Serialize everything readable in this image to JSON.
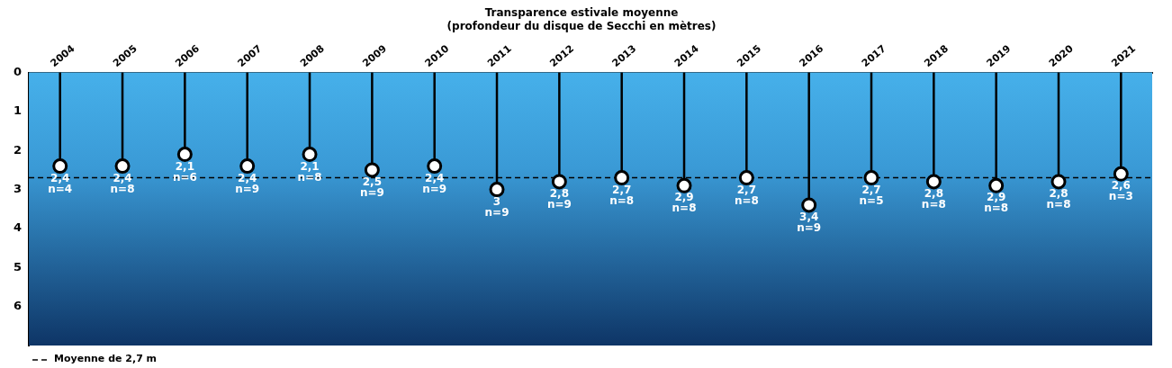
{
  "chart_data": {
    "type": "lollipop",
    "title": "Transparence estivale moyenne",
    "subtitle": "(profondeur du disque de Secchi en mètres)",
    "categories": [
      "2004",
      "2005",
      "2006",
      "2007",
      "2008",
      "2009",
      "2010",
      "2011",
      "2012",
      "2013",
      "2014",
      "2015",
      "2016",
      "2017",
      "2018",
      "2019",
      "2020",
      "2021"
    ],
    "series": [
      {
        "color": "#000000",
        "values": [
          2.4,
          2.4,
          2.1,
          2.4,
          2.1,
          2.5,
          2.4,
          3,
          2.8,
          2.7,
          2.9,
          2.7,
          3.4,
          2.7,
          2.8,
          2.9,
          2.8,
          2.6
        ],
        "value_labels": [
          "2,4 n=4",
          "2,4 n=8",
          "2,1 n=6",
          "2,4 n=9",
          "2,1 n=8",
          "2,5 n=9",
          "2,4 n=9",
          "3 n=9",
          "2,8 n=9",
          "2,7 n=8",
          "2,9 n=8",
          "2,7 n=8",
          "3,4 n=9",
          "2,7 n=5",
          "2,8 n=8",
          "2,9 n=8",
          "2,8 n=8",
          "2,6 n=3"
        ]
      }
    ],
    "ylim": [
      7,
      0
    ],
    "yticks": [
      0,
      1,
      2,
      3,
      4,
      5,
      6
    ],
    "ref_lines": [
      {
        "axis": "y",
        "value": 2.7,
        "label": "Moyenne de 2,7 m",
        "color": "#000000",
        "line_style": "dashed"
      }
    ],
    "marker": "circle",
    "grid": false,
    "legend": "bottom left"
  }
}
